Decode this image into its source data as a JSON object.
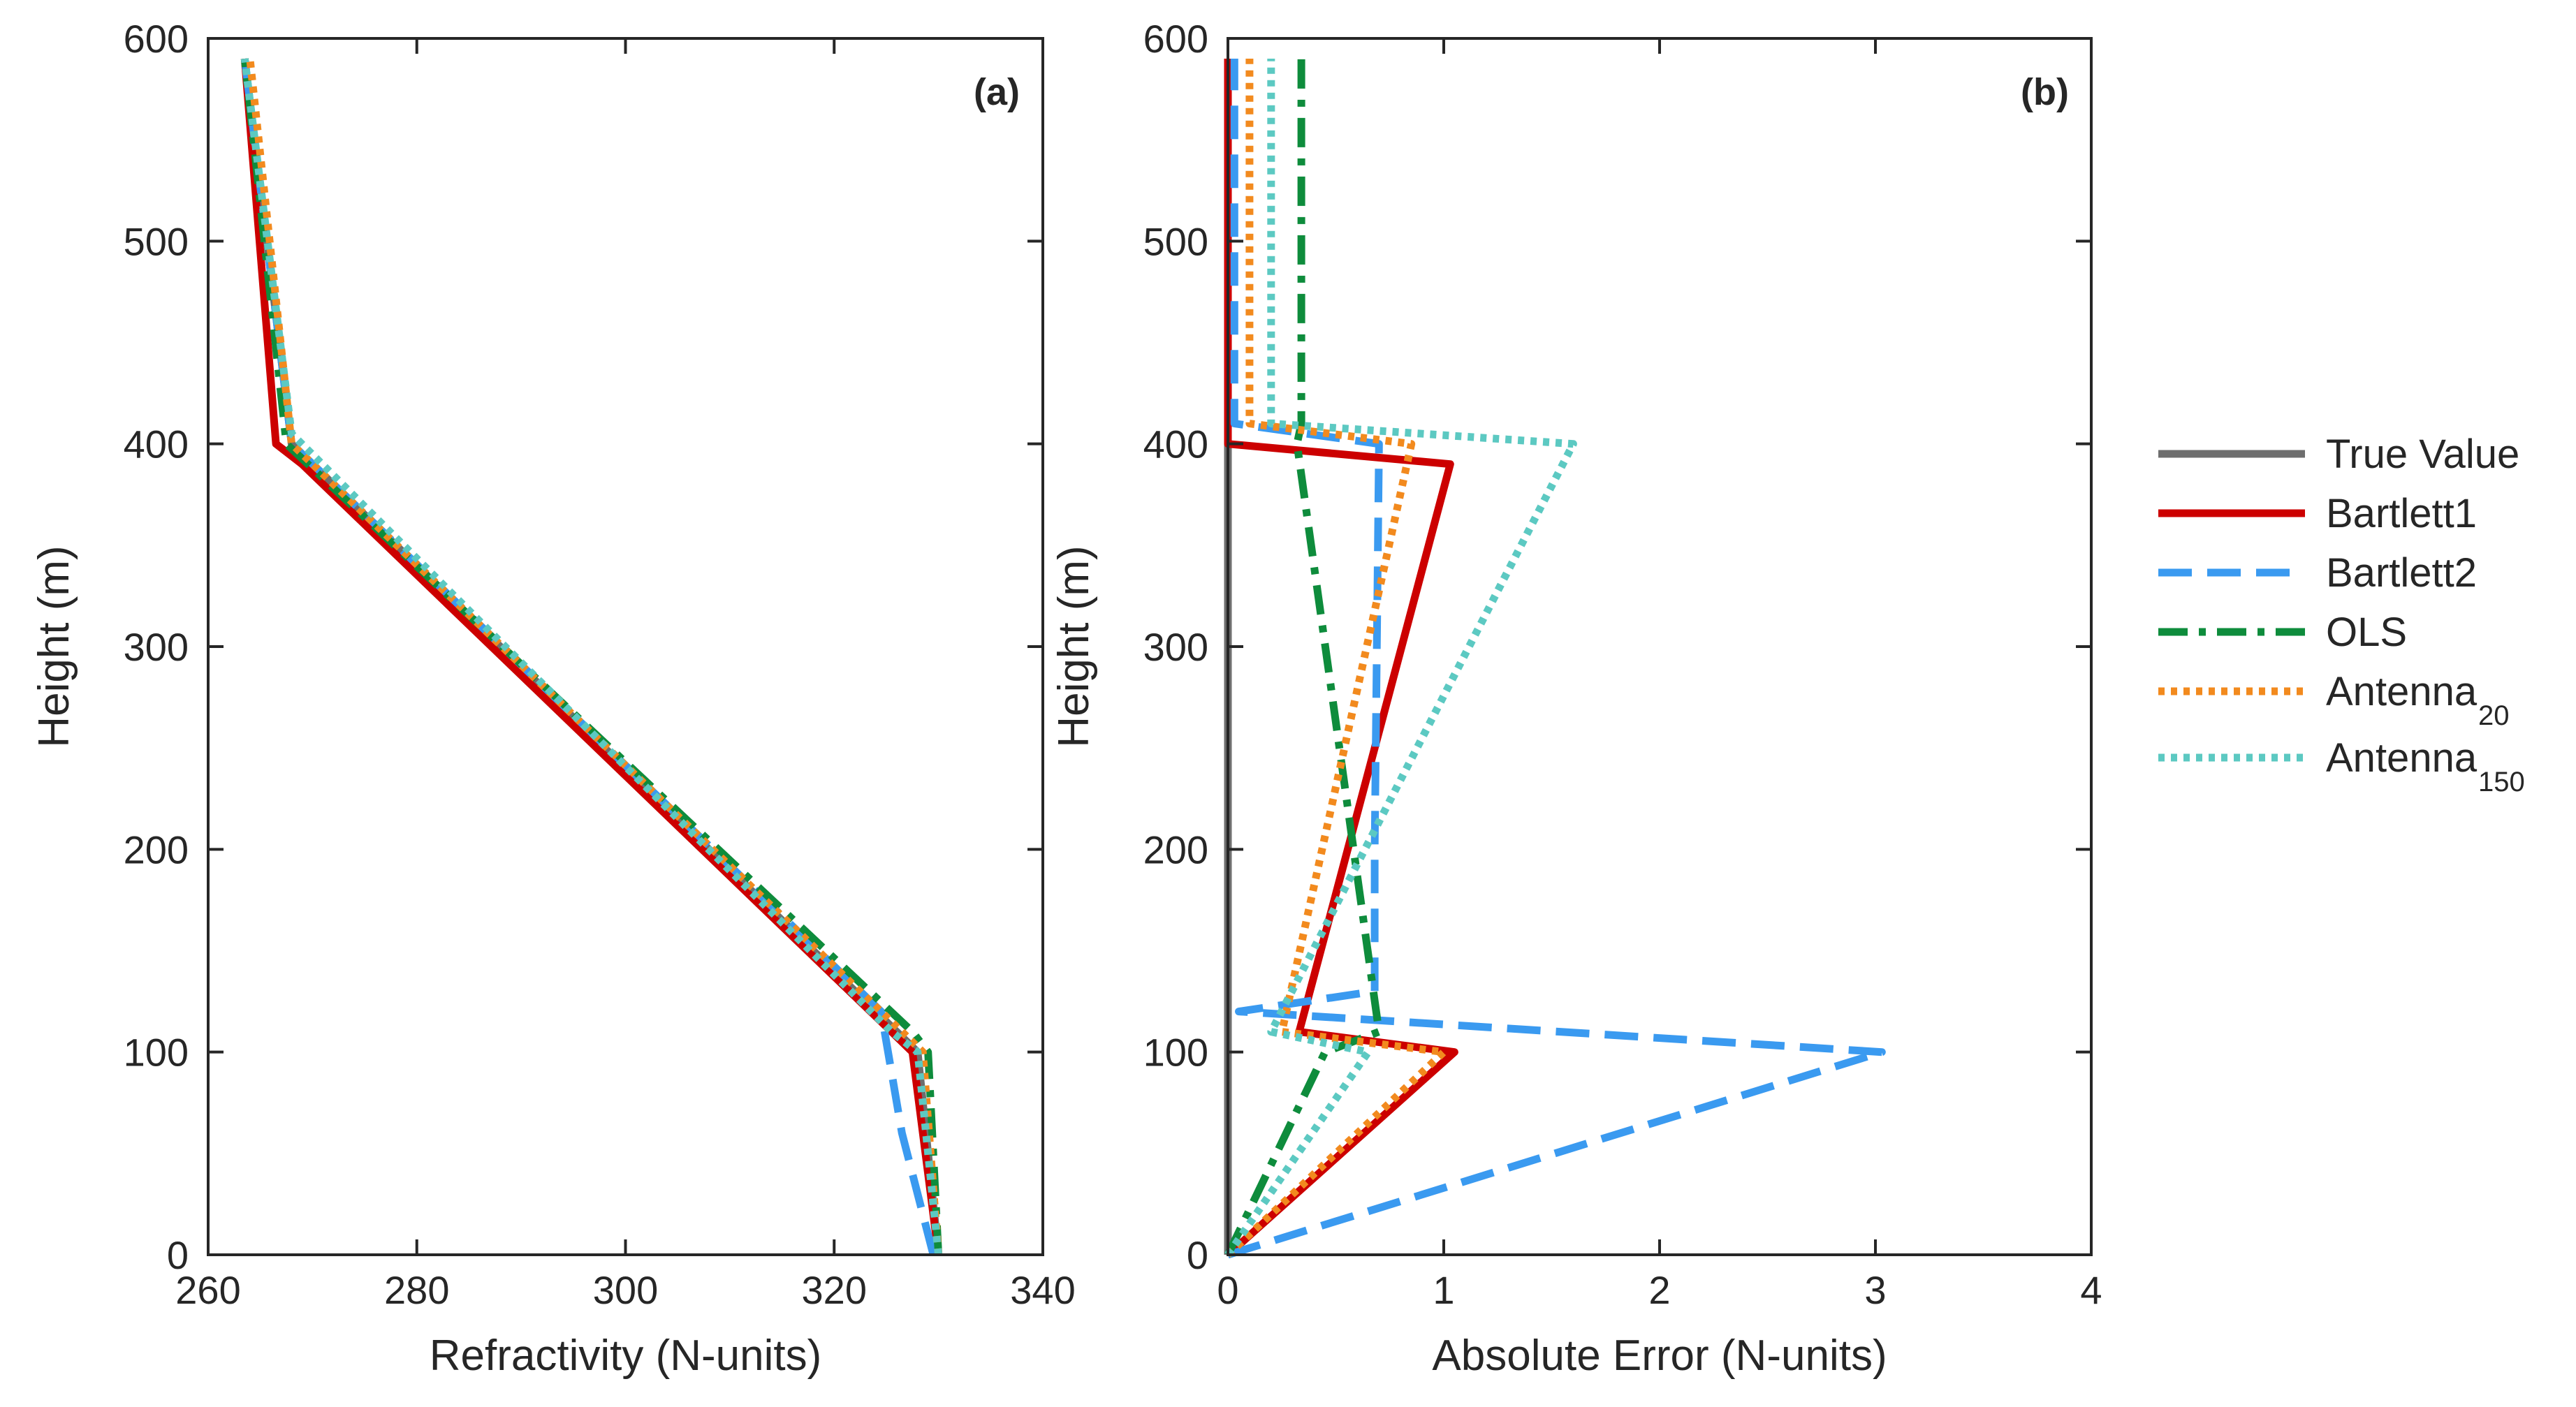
{
  "chart_data": [
    {
      "type": "line",
      "panel_label": "(a)",
      "xlabel": "Refractivity (N-units)",
      "ylabel": "Height (m)",
      "xlim": [
        260,
        340
      ],
      "ylim": [
        0,
        600
      ],
      "xticks": [
        260,
        280,
        300,
        320,
        340
      ],
      "yticks": [
        0,
        100,
        200,
        300,
        400,
        500,
        600
      ],
      "grid": false,
      "series": [
        {
          "name": "True Value",
          "x": [
            330,
            328,
            268,
            263.5
          ],
          "y": [
            0,
            100,
            400,
            590
          ]
        },
        {
          "name": "Bartlett1",
          "x": [
            330,
            327.5,
            325.5,
            269,
            266.5,
            263.5
          ],
          "y": [
            0,
            100,
            110,
            390,
            400,
            590
          ]
        },
        {
          "name": "Bartlett2",
          "x": [
            329.5,
            326.5,
            324.5,
            268,
            263.5
          ],
          "y": [
            0,
            60,
            120,
            400,
            590
          ]
        },
        {
          "name": "OLS",
          "x": [
            330,
            329,
            327.5,
            267.5,
            263.5
          ],
          "y": [
            0,
            100,
            110,
            400,
            590
          ]
        },
        {
          "name": "Antenna_20",
          "x": [
            330,
            328.5,
            326.5,
            268,
            264
          ],
          "y": [
            0,
            100,
            110,
            400,
            590
          ]
        },
        {
          "name": "Antenna_150",
          "x": [
            330,
            328,
            325.5,
            268,
            263.5
          ],
          "y": [
            0,
            100,
            110,
            405,
            590
          ]
        }
      ]
    },
    {
      "type": "line",
      "panel_label": "(b)",
      "xlabel": "Absolute Error (N-units)",
      "ylabel": "Height (m)",
      "xlim": [
        0,
        4
      ],
      "ylim": [
        0,
        600
      ],
      "xticks": [
        0,
        1,
        2,
        3,
        4
      ],
      "yticks": [
        0,
        100,
        200,
        300,
        400,
        500,
        600
      ],
      "grid": false,
      "series": [
        {
          "name": "True Value",
          "x": [
            0,
            0
          ],
          "y": [
            0,
            590
          ]
        },
        {
          "name": "Bartlett1",
          "x": [
            0,
            1.05,
            0.33,
            1.03,
            0,
            0
          ],
          "y": [
            0,
            100,
            110,
            390,
            400,
            590
          ]
        },
        {
          "name": "Bartlett2",
          "x": [
            0,
            3.03,
            0.05,
            0.68,
            0.68,
            0.7,
            0.03,
            0.03
          ],
          "y": [
            0,
            100,
            120,
            130,
            200,
            400,
            410,
            590
          ]
        },
        {
          "name": "OLS",
          "x": [
            0,
            0.45,
            0.7,
            0.32,
            0.34,
            0.34
          ],
          "y": [
            0,
            100,
            110,
            400,
            410,
            590
          ]
        },
        {
          "name": "Antenna_20",
          "x": [
            0,
            1.0,
            0.25,
            0.85,
            0.1,
            0.1
          ],
          "y": [
            0,
            100,
            110,
            400,
            410,
            590
          ]
        },
        {
          "name": "Antenna_150",
          "x": [
            0,
            0.65,
            0.2,
            1.6,
            0.2,
            0.2
          ],
          "y": [
            0,
            100,
            110,
            400,
            410,
            590
          ]
        }
      ]
    }
  ],
  "legend": {
    "placement": "right",
    "entries": [
      {
        "label": "True Value",
        "sub": "",
        "color": "#6e6e6e",
        "style": "solid"
      },
      {
        "label": "Bartlett1",
        "sub": "",
        "color": "#cc0000",
        "style": "solid"
      },
      {
        "label": "Bartlett2",
        "sub": "",
        "color": "#3a9af0",
        "style": "dashed"
      },
      {
        "label": "OLS",
        "sub": "",
        "color": "#0e8c3c",
        "style": "dashdot"
      },
      {
        "label": "Antenna",
        "sub": "20",
        "color": "#f28a1e",
        "style": "dotted"
      },
      {
        "label": "Antenna",
        "sub": "150",
        "color": "#5cc9c2",
        "style": "dotted"
      }
    ]
  }
}
